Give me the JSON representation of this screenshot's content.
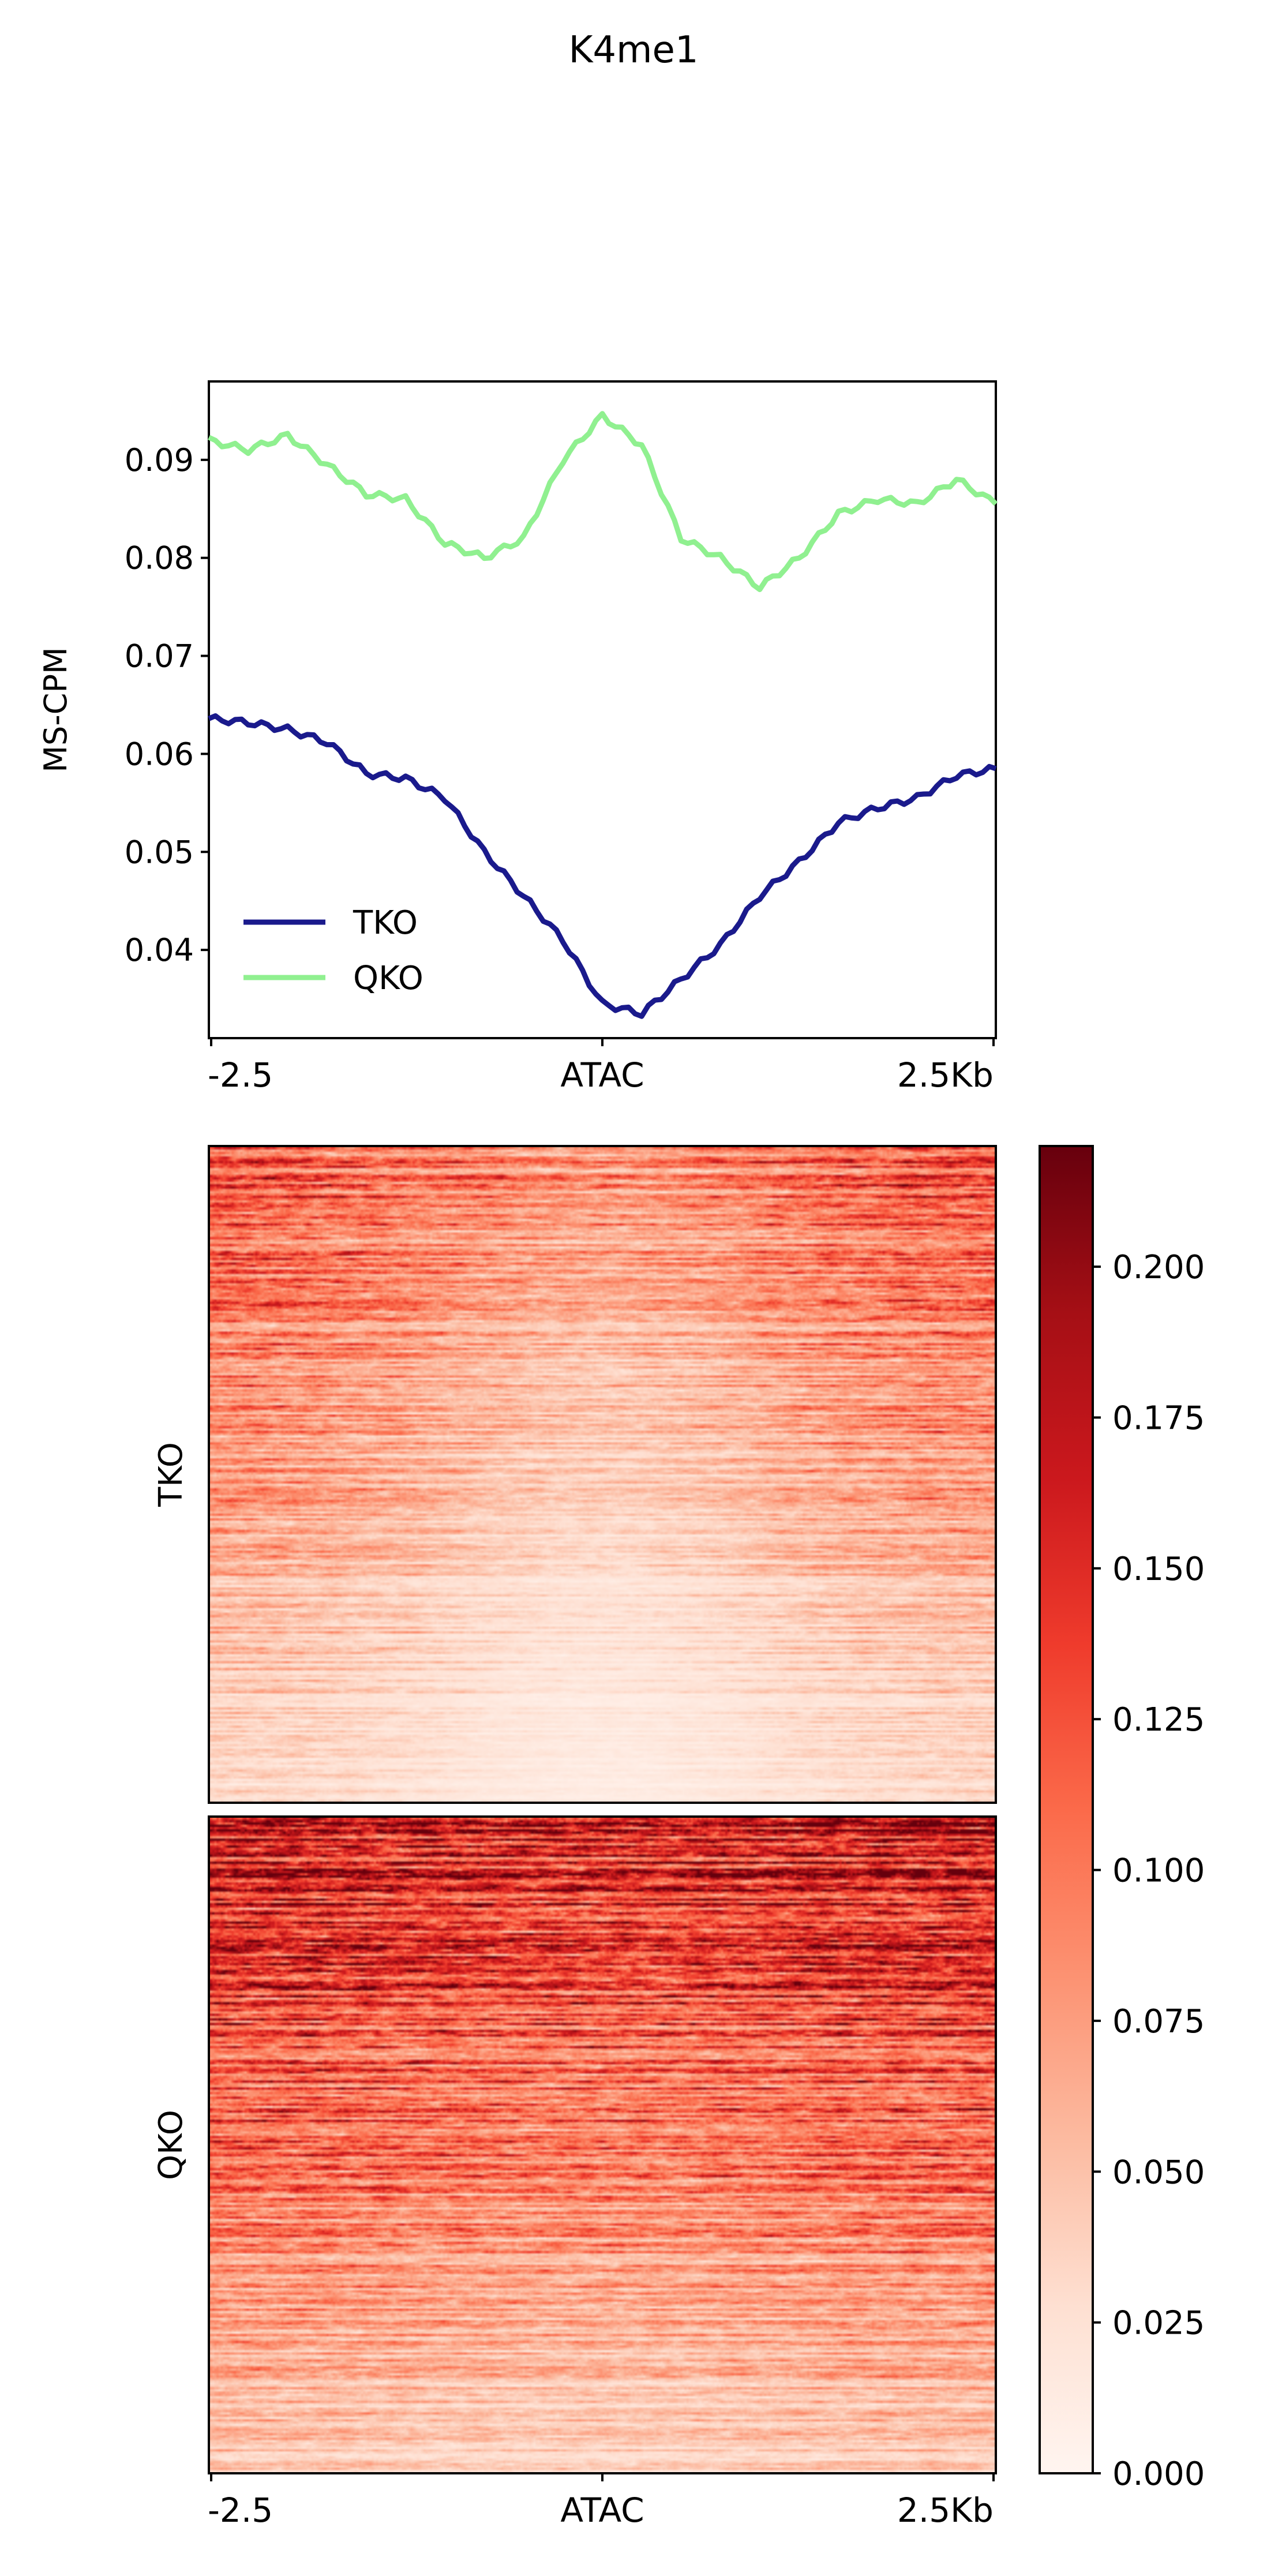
{
  "chart_data": [
    {
      "type": "line",
      "title": "K4me1",
      "ylabel": "MS-CPM",
      "ylim": [
        0.031,
        0.098
      ],
      "yticks": [
        "0.04",
        "0.05",
        "0.06",
        "0.07",
        "0.08",
        "0.09"
      ],
      "ytick_values": [
        0.04,
        0.05,
        0.06,
        0.07,
        0.08,
        0.09
      ],
      "xtick_labels": [
        "-2.5",
        "ATAC",
        "2.5Kb"
      ],
      "xlim": [
        -2.5,
        2.5
      ],
      "legend": {
        "placement": "lower-left"
      },
      "series": [
        {
          "name": "TKO",
          "color": "#1a1a8c",
          "x": [
            -2.5,
            -2.25,
            -2.0,
            -1.75,
            -1.5,
            -1.25,
            -1.0,
            -0.75,
            -0.5,
            -0.25,
            0.0,
            0.25,
            0.5,
            0.75,
            1.0,
            1.25,
            1.5,
            1.75,
            2.0,
            2.25,
            2.5
          ],
          "y": [
            0.0636,
            0.0632,
            0.0625,
            0.0612,
            0.058,
            0.0575,
            0.0555,
            0.05,
            0.0455,
            0.041,
            0.0345,
            0.0335,
            0.037,
            0.0405,
            0.0455,
            0.049,
            0.053,
            0.0545,
            0.0555,
            0.0578,
            0.0585
          ]
        },
        {
          "name": "QKO",
          "color": "#90f090",
          "x": [
            -2.5,
            -2.25,
            -2.0,
            -1.75,
            -1.5,
            -1.25,
            -1.0,
            -0.75,
            -0.5,
            -0.25,
            0.0,
            0.25,
            0.5,
            0.75,
            1.0,
            1.25,
            1.5,
            1.75,
            2.0,
            2.25,
            2.5
          ],
          "y": [
            0.092,
            0.091,
            0.0925,
            0.0895,
            0.0865,
            0.086,
            0.0815,
            0.08,
            0.082,
            0.09,
            0.0945,
            0.0915,
            0.082,
            0.08,
            0.077,
            0.08,
            0.0845,
            0.086,
            0.0855,
            0.088,
            0.0855
          ]
        }
      ]
    },
    {
      "type": "heatmap",
      "rows_labels": [
        "TKO",
        "QKO"
      ],
      "xtick_labels": [
        "-2.5",
        "ATAC",
        "2.5Kb"
      ],
      "colormap": "Reds",
      "colorbar": {
        "vmin": 0.0,
        "vmax": 0.22,
        "ticks": [
          "0.000",
          "0.025",
          "0.050",
          "0.075",
          "0.100",
          "0.125",
          "0.150",
          "0.175",
          "0.200"
        ],
        "tick_values": [
          0.0,
          0.025,
          0.05,
          0.075,
          0.1,
          0.125,
          0.15,
          0.175,
          0.2
        ]
      }
    }
  ]
}
